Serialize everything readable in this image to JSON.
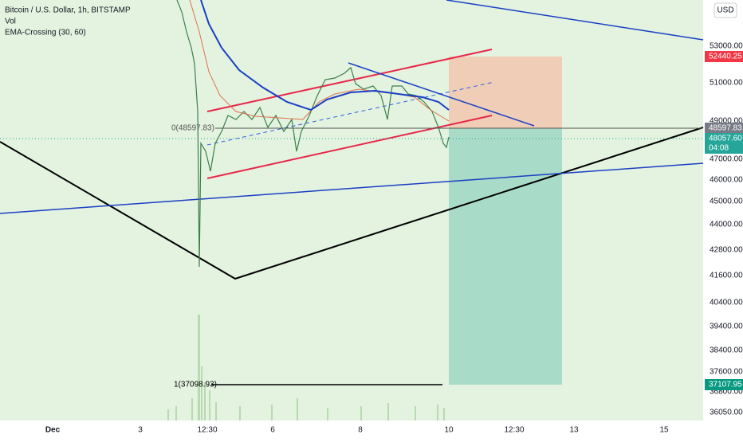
{
  "header": {
    "symbol": "Bitcoin / U.S. Dollar, 1h, BITSTAMP",
    "indicators": [
      "Vol",
      "EMA-Crossing (30, 60)"
    ]
  },
  "price_axis": {
    "currency": "USD",
    "labels": [
      "53000.00",
      "51000.00",
      "49000.00",
      "47000.00",
      "46000.00",
      "45000.00",
      "44000.00",
      "42800.00",
      "41600.00",
      "40400.00",
      "39400.00",
      "38400.00",
      "37600.00",
      "36800.00",
      "36050.00"
    ]
  },
  "badges": {
    "target": "52440.25",
    "entry": "48597.83",
    "last": "48057.60",
    "countdown": "04:08",
    "stop": "37107.95"
  },
  "annotations": [
    "0(48597.83)",
    "1(37098.93)"
  ],
  "time_axis": {
    "labels": [
      "Dec",
      "3",
      "12:30",
      "6",
      "8",
      "10",
      "12:30",
      "13",
      "15"
    ]
  }
}
